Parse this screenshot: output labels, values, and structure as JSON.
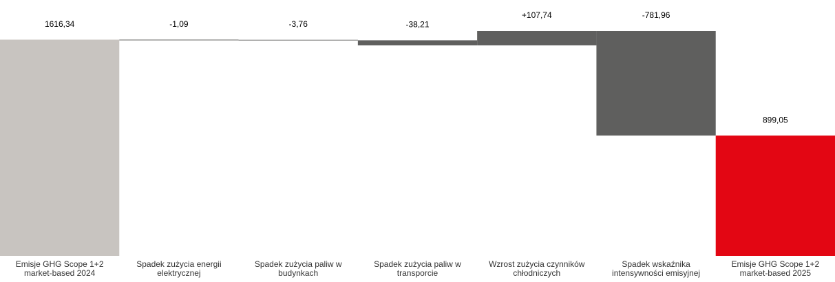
{
  "chart_data": {
    "type": "waterfall",
    "categories": [
      "Emisje GHG Scope 1+2 market-based 2024",
      "Spadek zużycia energii elektrycznej",
      "Spadek zużycia paliw w budynkach",
      "Spadek zużycia paliw w transporcie",
      "Wzrost zużycia czynników chłodniczych",
      "Spadek wskaźnika intensywności emisyjnej",
      "Emisje GHG Scope 1+2 market-based 2025"
    ],
    "values": [
      1616.34,
      -1.09,
      -3.76,
      -38.21,
      107.74,
      -781.96,
      899.05
    ],
    "value_labels": [
      "1616,34",
      "-1,09",
      "-3,76",
      "-38,21",
      "+107,74",
      "-781,96",
      "899,05"
    ],
    "colors": [
      "#c8c4c0",
      "#5f5f5e",
      "#5f5f5e",
      "#5f5f5e",
      "#5f5f5e",
      "#5f5f5e",
      "#e30613"
    ]
  }
}
